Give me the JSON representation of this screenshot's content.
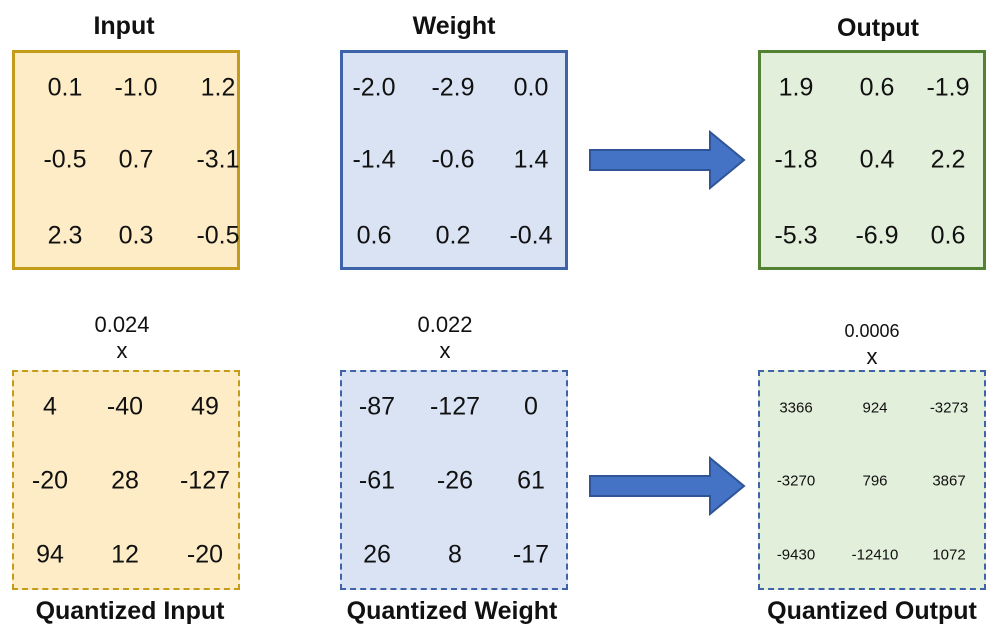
{
  "colors": {
    "input_fill": "#fdecc6",
    "input_border": "#c59b1b",
    "weight_fill": "#dae3f3",
    "weight_border": "#3f63a8",
    "output_fill": "#e2efda",
    "output_border": "#548235",
    "arrow": "#4472c4"
  },
  "titles": {
    "input": "Input",
    "weight": "Weight",
    "output": "Output",
    "quantized_input": "Quantized Input",
    "quantized_weight": "Quantized Weight",
    "quantized_output": "Quantized Output"
  },
  "scales": {
    "input": {
      "value": "0.024",
      "op": "x"
    },
    "weight": {
      "value": "0.022",
      "op": "x"
    },
    "output": {
      "value": "0.0006",
      "op": "x"
    }
  },
  "matrices": {
    "input": [
      [
        "0.1",
        "-1.0",
        "1.2"
      ],
      [
        "-0.5",
        "0.7",
        "-3.1"
      ],
      [
        "2.3",
        "0.3",
        "-0.5"
      ]
    ],
    "weight": [
      [
        "-2.0",
        "-2.9",
        "0.0"
      ],
      [
        "-1.4",
        "-0.6",
        "1.4"
      ],
      [
        "0.6",
        "0.2",
        "-0.4"
      ]
    ],
    "output": [
      [
        "1.9",
        "0.6",
        "-1.9"
      ],
      [
        "-1.8",
        "0.4",
        "2.2"
      ],
      [
        "-5.3",
        "-6.9",
        "0.6"
      ]
    ],
    "quantized_input": [
      [
        "4",
        "-40",
        "49"
      ],
      [
        "-20",
        "28",
        "-127"
      ],
      [
        "94",
        "12",
        "-20"
      ]
    ],
    "quantized_weight": [
      [
        "-87",
        "-127",
        "0"
      ],
      [
        "-61",
        "-26",
        "61"
      ],
      [
        "26",
        "8",
        "-17"
      ]
    ],
    "quantized_output": [
      [
        "3366",
        "924",
        "-3273"
      ],
      [
        "-3270",
        "796",
        "3867"
      ],
      [
        "-9430",
        "-12410",
        "1072"
      ]
    ]
  },
  "arrows": [
    "arrow-right-icon",
    "arrow-right-icon"
  ]
}
